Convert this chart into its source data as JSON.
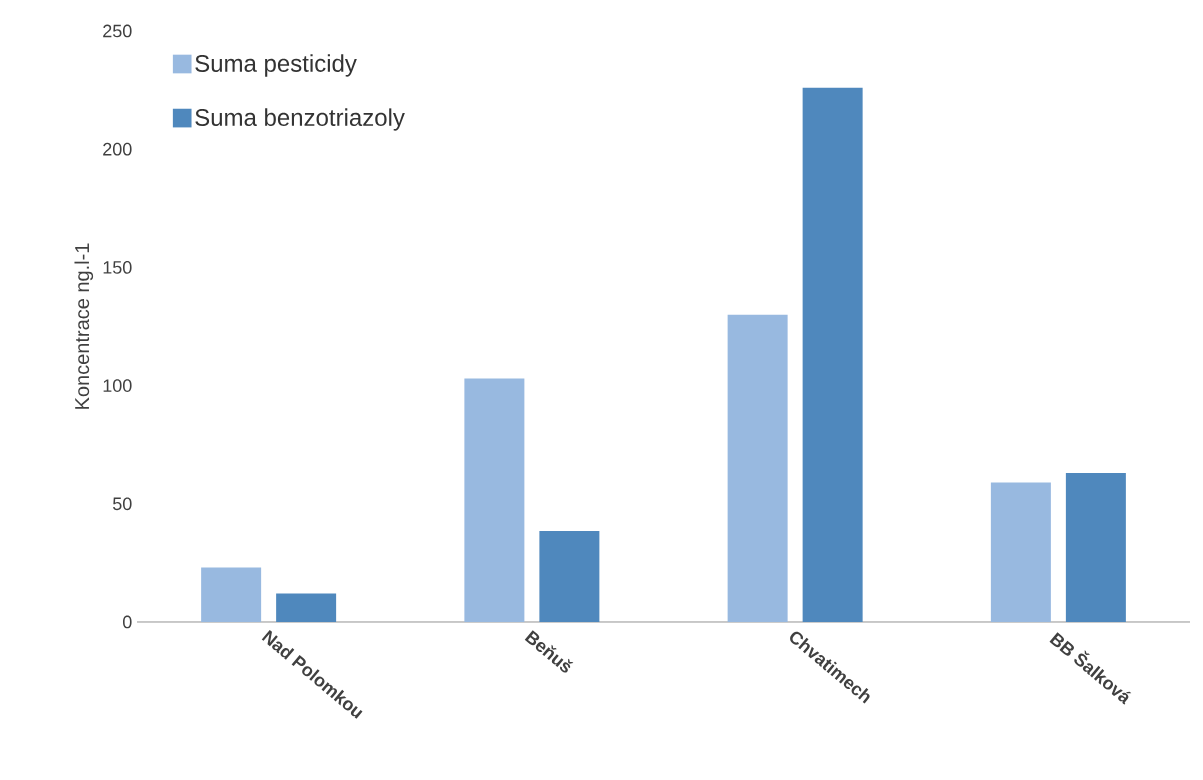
{
  "chart_data": {
    "type": "bar",
    "ylabel": "Koncentrace ng.l-1",
    "categories": [
      "Nad Polomkou",
      "Beňuš",
      "Chvatimech",
      "BB Šalková"
    ],
    "series": [
      {
        "name": "Suma pesticidy",
        "color": "#98b9e0",
        "values": [
          23,
          103,
          130,
          59
        ]
      },
      {
        "name": "Suma benzotriazoly",
        "color": "#4f88bd",
        "values": [
          12,
          38.5,
          226,
          63
        ]
      }
    ],
    "ylim": [
      0,
      250
    ],
    "yticks": [
      0,
      50,
      100,
      150,
      200,
      250
    ],
    "legend": "top left"
  }
}
